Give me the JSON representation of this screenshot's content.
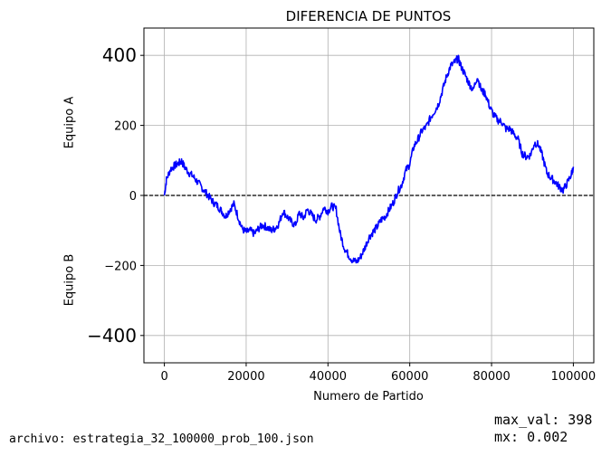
{
  "chart_data": {
    "type": "line",
    "title": "DIFERENCIA DE PUNTOS",
    "xlabel": "Numero de Partido",
    "ylabel_top": "Equipo A",
    "ylabel_bottom": "Equipo B",
    "xlim": [
      -5000,
      105000
    ],
    "ylim": [
      -478,
      478
    ],
    "x_ticks": [
      0,
      20000,
      40000,
      60000,
      80000,
      100000
    ],
    "y_ticks": [
      -400,
      -200,
      0,
      200,
      400
    ],
    "x_tick_labels": [
      "0",
      "20000",
      "40000",
      "60000",
      "80000",
      "100000"
    ],
    "y_tick_labels": [
      "−400",
      "−200",
      "0",
      "200",
      "400"
    ],
    "grid": true,
    "zero_line": {
      "y": 0,
      "style": "dashed",
      "color": "#000000"
    },
    "series": [
      {
        "color": "#0000ff",
        "x": [
          0,
          500,
          1500,
          2500,
          3500,
          4200,
          5000,
          6000,
          7000,
          8000,
          9000,
          10000,
          11000,
          12000,
          13000,
          14000,
          15000,
          16000,
          17000,
          18000,
          19000,
          20000,
          21000,
          22000,
          23000,
          24000,
          25000,
          26000,
          27000,
          28000,
          29000,
          30000,
          31000,
          32000,
          33000,
          34000,
          35000,
          36000,
          37000,
          38000,
          39000,
          40000,
          41000,
          42000,
          43000,
          44000,
          45000,
          46000,
          47000,
          48000,
          49000,
          50000,
          51000,
          52000,
          53000,
          54000,
          55000,
          56000,
          57000,
          58000,
          59000,
          60000,
          61000,
          62000,
          63000,
          64000,
          65000,
          66000,
          67000,
          68000,
          69000,
          70000,
          71000,
          71800,
          72500,
          73500,
          74500,
          75500,
          76500,
          77500,
          78500,
          79500,
          80500,
          81500,
          82500,
          83500,
          84500,
          85500,
          86500,
          87500,
          88500,
          89500,
          90500,
          91500,
          92500,
          93500,
          94500,
          95500,
          96500,
          97500,
          98500,
          99500,
          100000
        ],
        "values": [
          0,
          45,
          75,
          85,
          92,
          98,
          80,
          65,
          55,
          40,
          25,
          10,
          -5,
          -20,
          -30,
          -45,
          -60,
          -40,
          -25,
          -60,
          -95,
          -105,
          -100,
          -110,
          -95,
          -85,
          -90,
          -100,
          -95,
          -80,
          -45,
          -60,
          -75,
          -85,
          -50,
          -65,
          -40,
          -55,
          -70,
          -60,
          -35,
          -45,
          -30,
          -40,
          -110,
          -150,
          -170,
          -185,
          -190,
          -175,
          -150,
          -120,
          -105,
          -90,
          -70,
          -60,
          -40,
          -20,
          10,
          30,
          70,
          90,
          140,
          160,
          185,
          195,
          220,
          240,
          260,
          300,
          340,
          370,
          380,
          392,
          370,
          345,
          320,
          300,
          340,
          300,
          290,
          255,
          230,
          215,
          210,
          190,
          190,
          175,
          160,
          120,
          110,
          115,
          150,
          145,
          110,
          65,
          50,
          40,
          25,
          15,
          35,
          60,
          82
        ]
      }
    ]
  },
  "footer": {
    "archivo": "archivo: estrategia_32_100000_prob_100.json",
    "max_val": "max_val: 398",
    "mx": "mx: 0.002"
  }
}
